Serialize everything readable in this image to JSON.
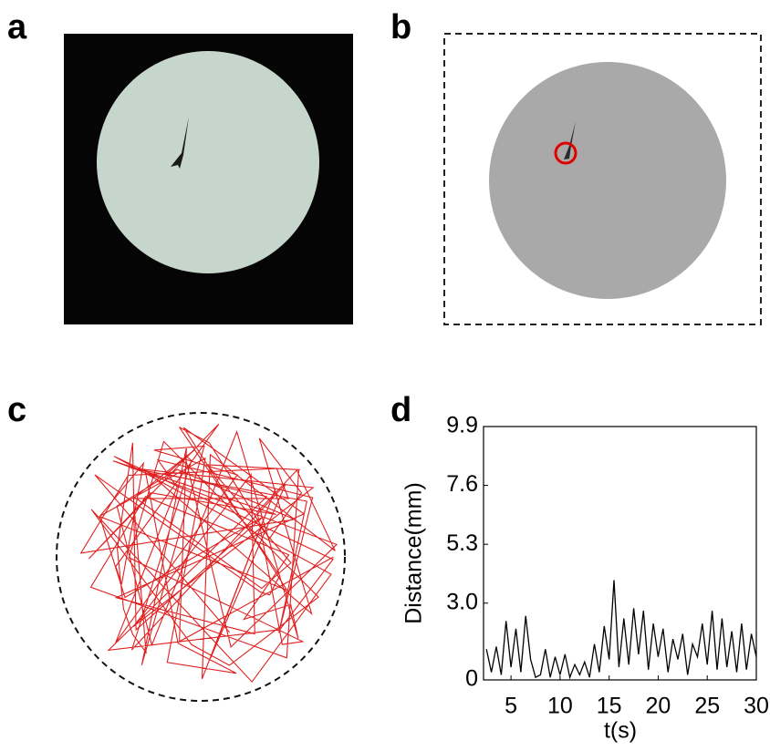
{
  "panel_labels": [
    "a",
    "b",
    "c",
    "d"
  ],
  "chart_data": {
    "type": "line",
    "x_label": "t(s)",
    "y_label": "Distance(mm)",
    "x": [
      2.5,
      3,
      3.5,
      4,
      4.5,
      5,
      5.5,
      6,
      6.5,
      7,
      7.5,
      8,
      8.5,
      9,
      9.5,
      10,
      10.5,
      11,
      11.5,
      12,
      12.5,
      13,
      13.5,
      14,
      14.5,
      15,
      15.5,
      16,
      16.5,
      17,
      17.5,
      18,
      18.5,
      19,
      19.5,
      20,
      20.5,
      21,
      21.5,
      22,
      22.5,
      23,
      23.5,
      24,
      24.5,
      25,
      25.5,
      26,
      26.5,
      27,
      27.5,
      28,
      28.5,
      29,
      29.5,
      30
    ],
    "values": [
      1.2,
      0.3,
      1.3,
      0.2,
      2.3,
      0.5,
      2.0,
      0.3,
      2.5,
      0.8,
      0.1,
      0.2,
      1.2,
      0.1,
      0.9,
      0.2,
      1.0,
      0.1,
      0.6,
      0.2,
      0.7,
      0.1,
      1.4,
      0.3,
      2.1,
      0.8,
      3.9,
      0.5,
      2.4,
      0.6,
      2.8,
      1.0,
      2.7,
      0.4,
      2.2,
      0.9,
      2.0,
      0.3,
      1.6,
      0.8,
      1.8,
      0.2,
      1.4,
      0.9,
      2.2,
      0.6,
      2.7,
      0.4,
      2.4,
      0.5,
      1.9,
      0.3,
      2.2,
      0.4,
      1.8,
      0.9
    ],
    "color": "#000000",
    "xlim": [
      2.2,
      30
    ],
    "ylim": [
      0,
      9.9
    ],
    "xticks": [
      5,
      10,
      15,
      20,
      25,
      30
    ],
    "yticks": [
      0,
      {
        "value": 3,
        "label": "3.0"
      },
      5.3,
      7.6,
      9.9
    ]
  }
}
